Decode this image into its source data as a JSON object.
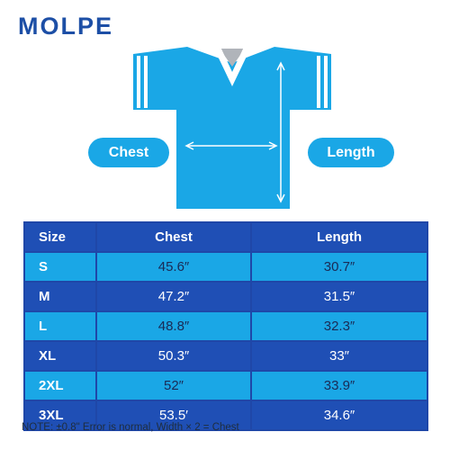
{
  "brand": "MOLPE",
  "labels": {
    "chest": "Chest",
    "length": "Length"
  },
  "table": {
    "headers": [
      "Size",
      "Chest",
      "Length"
    ],
    "rows": [
      {
        "size": "S",
        "chest": "45.6″",
        "length": "30.7″"
      },
      {
        "size": "M",
        "chest": "47.2″",
        "length": "31.5″"
      },
      {
        "size": "L",
        "chest": "48.8″",
        "length": "32.3″"
      },
      {
        "size": "XL",
        "chest": "50.3″",
        "length": "33″"
      },
      {
        "size": "2XL",
        "chest": "52″",
        "length": "33.9″"
      },
      {
        "size": "3XL",
        "chest": "53.5′",
        "length": "34.6″"
      }
    ]
  },
  "note": "NOTE: ±0.8\" Error is normal, Width × 2 = Chest",
  "colors": {
    "jersey": "#1aa7e6",
    "header": "#1f4fb5",
    "collar": "#b0b4ba",
    "brand": "#1d4fa6"
  }
}
